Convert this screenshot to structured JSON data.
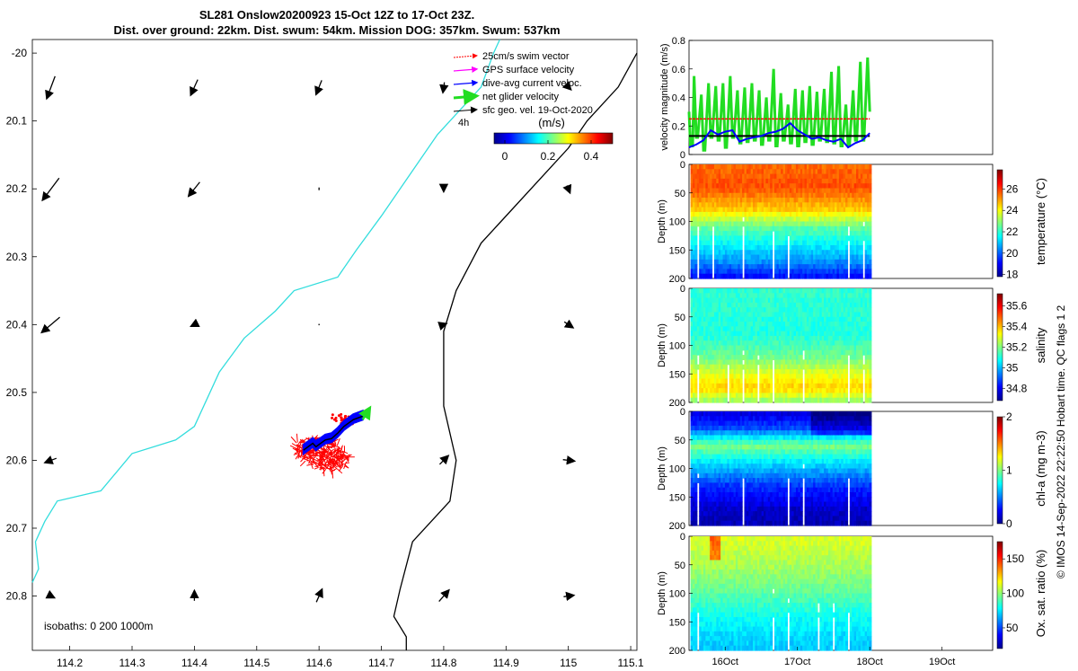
{
  "title_line1": "SL281 Onslow20200923 15-Oct 12Z to 17-Oct 23Z.",
  "title_line2": "Dist. over ground: 22km. Dist. swum: 54km. Mission DOG: 357km. Swum: 537km",
  "credit": "© IMOS 14-Sep-2022 22:22:50 Hobart time. QC flags 1  2",
  "colors": {
    "swim": "#ff0000",
    "gps": "#ff00ff",
    "dive_avg": "#0000ff",
    "net": "#22dd22",
    "sfc_geo": "#000000",
    "coast": "#33dddd",
    "isobath": "#000000"
  },
  "chart_data": [
    {
      "id": "map",
      "type": "scatter",
      "xlim": [
        114.14,
        115.11
      ],
      "ylim_lat": [
        -20.88,
        -19.98
      ],
      "x_ticks": [
        "114.2",
        "114.3",
        "114.4",
        "114.5",
        "114.6",
        "114.7",
        "114.8",
        "114.9",
        "115",
        "115.1"
      ],
      "x_tick_values": [
        114.2,
        114.3,
        114.4,
        114.5,
        114.6,
        114.7,
        114.8,
        114.9,
        115.0,
        115.1
      ],
      "y_ticks": [
        "-20",
        "20.1",
        "20.2",
        "20.3",
        "20.4",
        "20.5",
        "20.6",
        "20.7",
        "20.8"
      ],
      "y_tick_values": [
        -20.0,
        -20.1,
        -20.2,
        -20.3,
        -20.4,
        -20.5,
        -20.6,
        -20.7,
        -20.8
      ],
      "legend": {
        "items": [
          "25cm/s swim vector",
          "GPS surface velocity",
          "dive-avg current veloc.",
          "net glider velocity",
          "sfc geo. vel. 19-Oct-2020"
        ],
        "scale_label": "4h"
      },
      "colorbar": {
        "label": "(m/s)",
        "ticks": [
          "0",
          "0.2",
          "0.4"
        ],
        "tick_values": [
          0,
          0.2,
          0.4
        ],
        "range": [
          -0.05,
          0.5
        ]
      },
      "isobaths_label": "isobaths: 0   200  1000m",
      "current_vectors_lon": [
        114.17,
        114.4,
        114.6,
        114.8,
        115.0
      ],
      "current_vectors_lat": [
        -20.05,
        -20.2,
        -20.4,
        -20.6,
        -20.8
      ],
      "current_vectors": [
        [
          [
            -0.06,
            -0.16
          ],
          [
            -0.05,
            -0.11
          ],
          [
            -0.04,
            -0.1
          ],
          [
            -0.01,
            -0.07
          ],
          [
            0.03,
            -0.03
          ]
        ],
        [
          [
            -0.12,
            -0.16
          ],
          [
            -0.08,
            -0.1
          ],
          [
            0.0,
            -0.02
          ],
          [
            0.0,
            -0.03
          ],
          [
            0.02,
            -0.05
          ]
        ],
        [
          [
            -0.13,
            -0.11
          ],
          [
            -0.04,
            -0.02
          ],
          [
            0.0,
            -0.01
          ],
          [
            0.03,
            0.01
          ],
          [
            0.06,
            -0.04
          ]
        ],
        [
          [
            -0.08,
            -0.03
          ],
          [
            0.0,
            0.0
          ],
          [
            0.0,
            0.0
          ],
          [
            0.06,
            0.06
          ],
          [
            0.08,
            -0.01
          ]
        ],
        [
          [
            0.04,
            -0.02
          ],
          [
            0.0,
            0.07
          ],
          [
            0.04,
            0.09
          ],
          [
            0.07,
            0.08
          ],
          [
            0.07,
            0.01
          ]
        ]
      ],
      "coastline": [
        [
          114.14,
          -20.78
        ],
        [
          114.15,
          -20.76
        ],
        [
          114.145,
          -20.72
        ],
        [
          114.16,
          -20.69
        ],
        [
          114.18,
          -20.66
        ],
        [
          114.25,
          -20.645
        ],
        [
          114.3,
          -20.59
        ],
        [
          114.37,
          -20.57
        ],
        [
          114.4,
          -20.55
        ],
        [
          114.44,
          -20.47
        ],
        [
          114.48,
          -20.42
        ],
        [
          114.53,
          -20.38
        ],
        [
          114.56,
          -20.35
        ],
        [
          114.63,
          -20.33
        ],
        [
          114.66,
          -20.29
        ],
        [
          114.7,
          -20.24
        ],
        [
          114.73,
          -20.2
        ],
        [
          114.76,
          -20.16
        ],
        [
          114.79,
          -20.12
        ],
        [
          114.83,
          -20.08
        ],
        [
          114.86,
          -20.05
        ],
        [
          114.88,
          -20.0
        ],
        [
          114.89,
          -19.98
        ]
      ],
      "isobath_line": [
        [
          114.74,
          -20.88
        ],
        [
          114.74,
          -20.86
        ],
        [
          114.72,
          -20.83
        ],
        [
          114.73,
          -20.79
        ],
        [
          114.75,
          -20.72
        ],
        [
          114.81,
          -20.66
        ],
        [
          114.82,
          -20.6
        ],
        [
          114.8,
          -20.52
        ],
        [
          114.8,
          -20.41
        ],
        [
          114.82,
          -20.35
        ],
        [
          114.86,
          -20.28
        ],
        [
          114.89,
          -20.25
        ],
        [
          114.97,
          -20.17
        ],
        [
          115.0,
          -20.14
        ],
        [
          115.03,
          -20.1
        ],
        [
          115.08,
          -20.05
        ],
        [
          115.11,
          -20.0
        ]
      ],
      "glider_track": [
        [
          114.575,
          -20.585
        ],
        [
          114.59,
          -20.575
        ],
        [
          114.595,
          -20.58
        ],
        [
          114.61,
          -20.57
        ],
        [
          114.62,
          -20.568
        ],
        [
          114.63,
          -20.56
        ],
        [
          114.64,
          -20.55
        ],
        [
          114.655,
          -20.54
        ],
        [
          114.67,
          -20.535
        ]
      ],
      "net_velocity": [
        [
          114.67,
          -20.54
        ],
        [
          114.68,
          -20.525
        ]
      ]
    },
    {
      "id": "velocity",
      "type": "line",
      "ylabel": "velocity magnitude (m/s)",
      "ylim": [
        0,
        0.8
      ],
      "y_ticks": [
        "0",
        "0.2",
        "0.4",
        "0.6",
        "0.8"
      ],
      "y_tick_values": [
        0,
        0.2,
        0.4,
        0.6,
        0.8
      ],
      "x_days": [
        15.5,
        19.7
      ],
      "series": [
        {
          "name": "swim",
          "x": [
            15.5,
            18.0
          ],
          "values": [
            0.25,
            0.25
          ]
        },
        {
          "name": "sfc geo",
          "x": [
            15.5,
            18.0
          ],
          "values": [
            0.13,
            0.13
          ]
        },
        {
          "name": "dive-avg",
          "x": [
            15.5,
            15.6,
            15.7,
            15.8,
            15.9,
            16.0,
            16.1,
            16.2,
            16.3,
            16.4,
            16.5,
            16.6,
            16.7,
            16.8,
            16.9,
            17.0,
            17.1,
            17.2,
            17.3,
            17.4,
            17.5,
            17.6,
            17.7,
            17.8,
            17.9,
            18.0
          ],
          "values": [
            0.05,
            0.07,
            0.1,
            0.17,
            0.14,
            0.16,
            0.17,
            0.09,
            0.11,
            0.12,
            0.13,
            0.15,
            0.16,
            0.18,
            0.22,
            0.17,
            0.14,
            0.11,
            0.12,
            0.1,
            0.09,
            0.11,
            0.05,
            0.08,
            0.1,
            0.15
          ]
        },
        {
          "name": "net",
          "x": [
            15.5,
            15.52,
            15.55,
            15.57,
            15.6,
            15.62,
            15.67,
            15.7,
            15.72,
            15.77,
            15.8,
            15.82,
            15.87,
            15.9,
            15.92,
            15.97,
            16.0,
            16.02,
            16.07,
            16.1,
            16.12,
            16.17,
            16.2,
            16.22,
            16.27,
            16.3,
            16.32,
            16.37,
            16.4,
            16.42,
            16.47,
            16.5,
            16.52,
            16.57,
            16.6,
            16.62,
            16.67,
            16.7,
            16.72,
            16.77,
            16.8,
            16.82,
            16.87,
            16.9,
            16.92,
            16.97,
            17.0,
            17.02,
            17.07,
            17.1,
            17.12,
            17.17,
            17.2,
            17.22,
            17.27,
            17.3,
            17.32,
            17.37,
            17.4,
            17.42,
            17.47,
            17.5,
            17.52,
            17.57,
            17.6,
            17.62,
            17.67,
            17.7,
            17.72,
            17.77,
            17.8,
            17.82,
            17.87,
            17.9,
            17.92,
            17.97,
            18.0
          ],
          "values": [
            0.3,
            0.06,
            0.06,
            0.55,
            0.12,
            0.12,
            0.42,
            0.03,
            0.03,
            0.5,
            0.12,
            0.12,
            0.48,
            0.1,
            0.1,
            0.5,
            0.05,
            0.05,
            0.55,
            0.12,
            0.12,
            0.45,
            0.08,
            0.08,
            0.47,
            0.09,
            0.09,
            0.5,
            0.1,
            0.1,
            0.45,
            0.07,
            0.07,
            0.4,
            0.1,
            0.1,
            0.6,
            0.06,
            0.06,
            0.43,
            0.1,
            0.1,
            0.35,
            0.08,
            0.08,
            0.46,
            0.06,
            0.06,
            0.45,
            0.09,
            0.09,
            0.48,
            0.07,
            0.07,
            0.44,
            0.1,
            0.1,
            0.46,
            0.09,
            0.09,
            0.58,
            0.08,
            0.08,
            0.62,
            0.06,
            0.06,
            0.35,
            0.06,
            0.06,
            0.45,
            0.1,
            0.1,
            0.65,
            0.1,
            0.1,
            0.68,
            0.3
          ]
        }
      ]
    },
    {
      "id": "temperature",
      "type": "heatmap",
      "ylabel": "Depth (m)",
      "y_ticks": [
        "0",
        "50",
        "100",
        "150",
        "200"
      ],
      "y_tick_values": [
        0,
        50,
        100,
        150,
        200
      ],
      "colorbar_label": "temperature (°C)",
      "colorbar_ticks": [
        "18",
        "20",
        "22",
        "24",
        "26"
      ],
      "colorbar_tick_values": [
        18,
        20,
        22,
        24,
        26
      ],
      "crange": [
        17.8,
        27.8
      ],
      "profile": [
        [
          0,
          25.5
        ],
        [
          40,
          25.8
        ],
        [
          80,
          24.5
        ],
        [
          110,
          22.5
        ],
        [
          140,
          21.5
        ],
        [
          170,
          20.5
        ],
        [
          200,
          19
        ]
      ]
    },
    {
      "id": "salinity",
      "type": "heatmap",
      "ylabel": "Depth (m)",
      "y_ticks": [
        "0",
        "50",
        "100",
        "150",
        "200"
      ],
      "y_tick_values": [
        0,
        50,
        100,
        150,
        200
      ],
      "colorbar_label": "salinity",
      "colorbar_ticks": [
        "34.8",
        "35",
        "35.2",
        "35.4",
        "35.6"
      ],
      "colorbar_tick_values": [
        34.8,
        35,
        35.2,
        35.4,
        35.6
      ],
      "crange": [
        34.68,
        35.72
      ],
      "profile": [
        [
          0,
          35.12
        ],
        [
          80,
          35.1
        ],
        [
          120,
          35.18
        ],
        [
          150,
          35.3
        ],
        [
          175,
          35.38
        ],
        [
          200,
          35.2
        ]
      ]
    },
    {
      "id": "chl",
      "type": "heatmap",
      "ylabel": "Depth (m)",
      "y_ticks": [
        "0",
        "50",
        "100",
        "150",
        "200"
      ],
      "y_tick_values": [
        0,
        50,
        100,
        150,
        200
      ],
      "colorbar_label": "chl-a (mg m-3)",
      "colorbar_ticks": [
        "0",
        "1",
        "2"
      ],
      "colorbar_tick_values": [
        0,
        1,
        2
      ],
      "crange": [
        0,
        2
      ],
      "profile": [
        [
          0,
          0.15
        ],
        [
          30,
          0.4
        ],
        [
          60,
          1.0
        ],
        [
          90,
          0.7
        ],
        [
          130,
          0.35
        ],
        [
          170,
          0.15
        ],
        [
          200,
          0.1
        ]
      ]
    },
    {
      "id": "oxygen",
      "type": "heatmap",
      "ylabel": "Depth (m)",
      "y_ticks": [
        "0",
        "50",
        "100",
        "150",
        "200"
      ],
      "y_tick_values": [
        0,
        50,
        100,
        150,
        200
      ],
      "colorbar_label": "Ox. sat. ratio (%)",
      "colorbar_ticks": [
        "50",
        "100",
        "150"
      ],
      "colorbar_tick_values": [
        50,
        100,
        150
      ],
      "crange": [
        20,
        175
      ],
      "x_ticks": [
        "16Oct",
        "17Oct",
        "18Oct",
        "19Oct"
      ],
      "x_tick_values": [
        16,
        17,
        18,
        19
      ],
      "profile": [
        [
          0,
          112
        ],
        [
          60,
          102
        ],
        [
          100,
          92
        ],
        [
          140,
          80
        ],
        [
          180,
          72
        ],
        [
          200,
          70
        ]
      ]
    }
  ]
}
